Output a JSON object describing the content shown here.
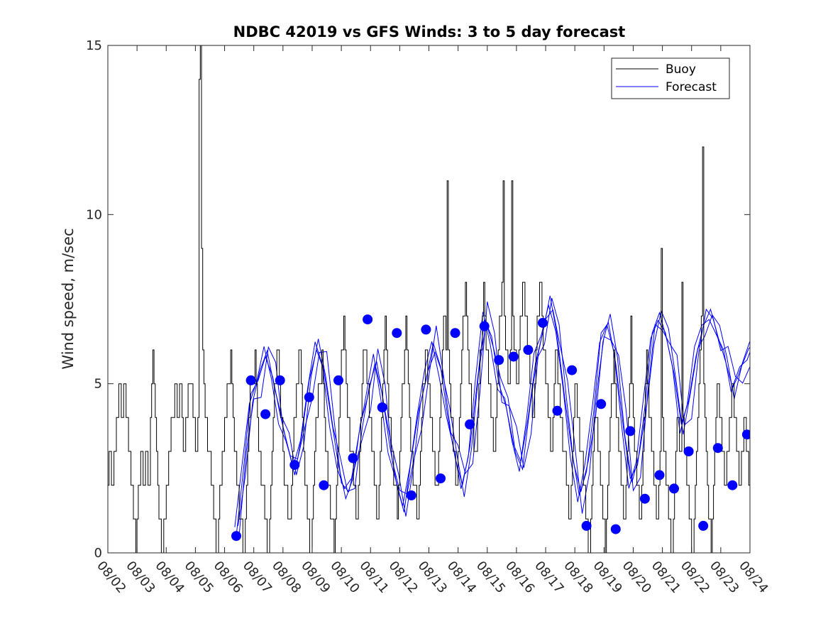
{
  "chart_data": {
    "type": "line",
    "title": "NDBC 42019 vs GFS Winds: 3 to 5 day forecast",
    "xlabel": "",
    "ylabel": "Wind speed, m/sec",
    "xlim": [
      0,
      22
    ],
    "ylim": [
      0,
      15
    ],
    "x_ticks": [
      0,
      1,
      2,
      3,
      4,
      5,
      6,
      7,
      8,
      9,
      10,
      11,
      12,
      13,
      14,
      15,
      16,
      17,
      18,
      19,
      20,
      21,
      22
    ],
    "x_tick_labels": [
      "08/02",
      "08/03",
      "08/04",
      "08/05",
      "08/06",
      "08/07",
      "08/08",
      "08/09",
      "08/10",
      "08/11",
      "08/12",
      "08/13",
      "08/14",
      "08/15",
      "08/16",
      "08/17",
      "08/18",
      "08/19",
      "08/20",
      "08/21",
      "08/22",
      "08/23",
      "08/24"
    ],
    "y_ticks": [
      0,
      5,
      10,
      15
    ],
    "y_tick_labels": [
      "0",
      "5",
      "10",
      "15"
    ],
    "grid": false,
    "legend": {
      "position": "top-right",
      "entries": [
        {
          "label": "Buoy",
          "color": "#000000"
        },
        {
          "label": "Forecast",
          "color": "#0000ff"
        }
      ]
    },
    "series": [
      {
        "name": "Buoy",
        "color": "#000000",
        "step_hours": 1,
        "x_start": 0,
        "values": [
          2,
          3,
          3,
          2,
          2,
          3,
          3,
          4,
          4,
          5,
          5,
          4,
          4,
          5,
          5,
          4,
          4,
          3,
          3,
          2,
          2,
          1,
          1,
          0,
          1,
          2,
          2,
          3,
          3,
          2,
          2,
          3,
          3,
          2,
          2,
          4,
          5,
          6,
          5,
          4,
          3,
          2,
          1,
          1,
          0,
          0,
          1,
          1,
          2,
          2,
          3,
          3,
          4,
          4,
          4,
          5,
          5,
          4,
          4,
          5,
          5,
          4,
          3,
          3,
          4,
          4,
          5,
          5,
          5,
          5,
          4,
          4,
          3,
          3,
          4,
          14,
          15,
          9,
          6,
          5,
          4,
          4,
          3,
          3,
          3,
          2,
          2,
          1,
          1,
          0,
          0,
          1,
          2,
          2,
          3,
          3,
          4,
          4,
          5,
          5,
          5,
          6,
          5,
          4,
          3,
          3,
          2,
          2,
          1,
          1,
          1,
          0,
          0,
          1,
          2,
          3,
          4,
          5,
          5,
          5,
          5,
          6,
          5,
          4,
          3,
          3,
          2,
          2,
          2,
          1,
          1,
          0,
          0,
          1,
          2,
          3,
          4,
          5,
          5,
          6,
          6,
          5,
          4,
          4,
          3,
          2,
          2,
          2,
          1,
          1,
          1,
          2,
          3,
          4,
          4,
          5,
          5,
          6,
          6,
          5,
          4,
          3,
          2,
          2,
          1,
          1,
          0,
          0,
          1,
          2,
          3,
          4,
          4,
          5,
          5,
          5,
          6,
          5,
          4,
          3,
          3,
          2,
          2,
          1,
          1,
          1,
          0,
          1,
          2,
          3,
          4,
          5,
          6,
          6,
          7,
          6,
          5,
          4,
          4,
          3,
          3,
          3,
          2,
          2,
          1,
          1,
          2,
          3,
          4,
          5,
          6,
          6,
          6,
          5,
          5,
          4,
          4,
          3,
          3,
          2,
          2,
          1,
          1,
          2,
          3,
          4,
          5,
          6,
          7,
          6,
          5,
          4,
          4,
          3,
          3,
          2,
          2,
          2,
          1,
          2,
          3,
          4,
          5,
          5,
          6,
          7,
          6,
          5,
          4,
          3,
          3,
          2,
          2,
          2,
          1,
          1,
          2,
          3,
          4,
          5,
          5,
          6,
          6,
          5,
          5,
          4,
          4,
          3,
          3,
          2,
          2,
          2,
          3,
          4,
          5,
          6,
          7,
          7,
          6,
          11,
          6,
          5,
          4,
          4,
          3,
          3,
          2,
          2,
          3,
          4,
          5,
          6,
          7,
          7,
          8,
          7,
          6,
          5,
          5,
          4,
          4,
          3,
          3,
          3,
          4,
          5,
          6,
          6,
          7,
          8,
          7,
          6,
          6,
          5,
          5,
          4,
          4,
          3,
          3,
          4,
          5,
          6,
          7,
          7,
          8,
          11,
          7,
          6,
          6,
          5,
          5,
          6,
          11,
          7,
          6,
          6,
          5,
          5,
          6,
          7,
          7,
          8,
          8,
          7,
          7,
          6,
          6,
          5,
          5,
          4,
          4,
          5,
          6,
          7,
          7,
          8,
          8,
          7,
          6,
          6,
          5,
          5,
          4,
          4,
          3,
          3,
          4,
          5,
          6,
          6,
          5,
          5,
          4,
          4,
          3,
          3,
          3,
          2,
          2,
          1,
          1,
          2,
          3,
          4,
          5,
          5,
          4,
          4,
          3,
          3,
          3,
          2,
          2,
          1,
          1,
          0,
          0,
          1,
          2,
          3,
          4,
          4,
          4,
          3,
          3,
          2,
          2,
          1,
          1,
          0,
          1,
          2,
          3,
          4,
          5,
          5,
          6,
          5,
          4,
          4,
          3,
          3,
          2,
          2,
          1,
          1,
          2,
          3,
          4,
          5,
          7,
          5,
          4,
          3,
          3,
          2,
          2,
          1,
          1,
          2,
          3,
          4,
          5,
          6,
          5,
          4,
          4,
          3,
          3,
          2,
          2,
          1,
          1,
          2,
          3,
          9,
          4,
          3,
          3,
          2,
          2,
          1,
          1,
          0,
          0,
          1,
          2,
          3,
          4,
          4,
          3,
          3,
          8,
          4,
          3,
          3,
          2,
          2,
          1,
          1,
          0,
          0,
          1,
          2,
          3,
          4,
          5,
          6,
          7,
          12,
          5,
          4,
          3,
          2,
          1,
          1,
          0,
          1,
          2,
          3,
          4,
          5,
          5,
          4,
          4,
          3,
          3,
          2,
          2,
          3,
          3,
          4,
          4,
          5,
          5,
          4,
          4,
          3,
          3,
          2,
          2,
          3,
          3,
          4,
          4,
          3,
          3,
          2
        ]
      },
      {
        "name": "Forecast",
        "color": "#0000ff",
        "runs": 4,
        "step_hours": 6,
        "x_start": 4.4,
        "values": [
          0.5,
          2.5,
          4.7,
          5.1,
          5.8,
          5.2,
          4.1,
          3.2,
          2.3,
          3.5,
          5.1,
          6.0,
          5.4,
          4.0,
          2.6,
          1.6,
          2.2,
          3.8,
          4.6,
          5.6,
          4.7,
          3.2,
          2.0,
          1.2,
          2.8,
          4.2,
          5.1,
          6.2,
          5.5,
          4.0,
          2.8,
          2.0,
          3.1,
          5.0,
          6.9,
          6.4,
          5.0,
          4.3,
          3.2,
          2.7,
          4.0,
          5.6,
          6.5,
          7.6,
          6.4,
          4.6,
          3.0,
          1.7,
          2.4,
          4.2,
          6.5,
          6.8,
          5.6,
          3.8,
          2.2,
          2.6,
          4.3,
          6.5,
          7.1,
          6.3,
          5.3,
          3.8,
          4.5,
          5.8,
          6.7,
          7.2,
          6.4,
          5.7,
          4.9,
          5.5,
          5.7,
          6.3,
          6.5,
          6.0,
          6.8,
          7.2,
          6.6,
          6.0,
          6.7,
          7.0,
          6.4,
          5.4,
          4.1,
          4.5,
          5.4,
          5.6,
          5.0,
          4.4,
          4.0,
          3.0,
          2.6,
          3.3,
          4.4,
          4.6,
          4.0,
          2.8,
          0.8,
          1.5,
          2.9,
          3.7,
          3.1,
          2.0,
          1.5,
          2.3,
          3.0,
          2.6,
          1.9,
          1.6,
          2.3,
          3.2,
          2.8,
          2.0,
          0.8,
          1.2,
          2.5,
          3.1,
          3.5,
          2.6,
          2.0,
          3.6,
          4.3,
          3.8,
          2.7,
          1.8,
          1.4
        ]
      }
    ],
    "markers": {
      "name": "Forecast verification points",
      "color": "#0000ff",
      "x": [
        4.4,
        4.9,
        5.4,
        5.9,
        6.4,
        6.9,
        7.4,
        7.9,
        8.4,
        8.9,
        9.4,
        9.9,
        10.4,
        10.9,
        11.4,
        11.9,
        12.4,
        12.9,
        13.4,
        13.9,
        14.4,
        14.9,
        15.4,
        15.9,
        16.4,
        16.9,
        17.4,
        17.9,
        18.4,
        18.9,
        19.4,
        19.9,
        20.4,
        20.9,
        21.4,
        21.9
      ],
      "y": [
        0.5,
        5.1,
        4.1,
        5.1,
        2.6,
        4.6,
        2.0,
        5.1,
        2.8,
        6.9,
        4.3,
        6.5,
        1.7,
        6.6,
        2.2,
        6.5,
        3.8,
        6.7,
        5.7,
        5.8,
        6.0,
        6.8,
        4.2,
        5.4,
        0.8,
        4.4,
        0.7,
        3.6,
        1.6,
        2.3,
        1.9,
        3.0,
        0.8,
        3.1,
        2.0,
        3.5
      ]
    }
  }
}
